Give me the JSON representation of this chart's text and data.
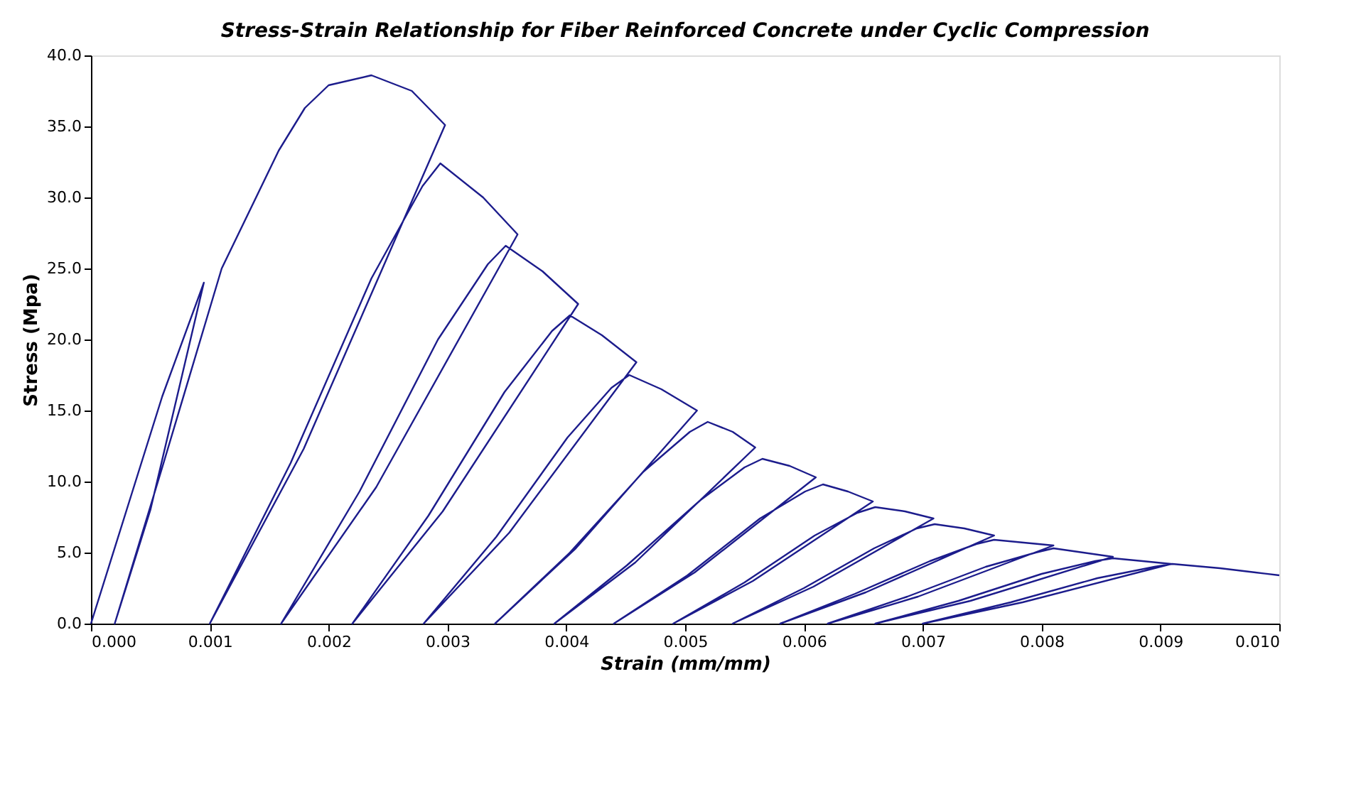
{
  "chart_data": {
    "type": "line",
    "title": "Stress-Strain Relationship for Fiber Reinforced Concrete under Cyclic Compression",
    "xlabel": "Strain (mm/mm)",
    "ylabel": "Stress (Mpa)",
    "series": [
      {
        "color": "#1c1c8c",
        "x": [
          0,
          0.0003,
          0.0006,
          0.00095,
          0.0005,
          0.0002,
          0.0006,
          0.0011,
          0.00158,
          0.0018,
          0.002,
          0.00236,
          0.0027,
          0.00298,
          0.00179,
          0.001,
          0.00168,
          0.00236,
          0.00279,
          0.00294,
          0.0033,
          0.00359,
          0.0024,
          0.0016,
          0.00226,
          0.00292,
          0.00334,
          0.00349,
          0.0038,
          0.0041,
          0.00296,
          0.0022,
          0.00284,
          0.00348,
          0.00388,
          0.00403,
          0.0043,
          0.00459,
          0.00352,
          0.0028,
          0.00341,
          0.00401,
          0.00438,
          0.00453,
          0.0048,
          0.0051,
          0.00408,
          0.0034,
          0.00403,
          0.00465,
          0.00504,
          0.00519,
          0.0054,
          0.00559,
          0.00458,
          0.0039,
          0.00451,
          0.00513,
          0.0055,
          0.00565,
          0.00588,
          0.0061,
          0.00508,
          0.0044,
          0.00502,
          0.00563,
          0.00601,
          0.00616,
          0.00637,
          0.00658,
          0.00557,
          0.0049,
          0.0055,
          0.00609,
          0.00645,
          0.0066,
          0.00685,
          0.00709,
          0.00608,
          0.0054,
          0.006,
          0.00659,
          0.00695,
          0.0071,
          0.00735,
          0.0076,
          0.00652,
          0.0058,
          0.00643,
          0.00706,
          0.00745,
          0.0076,
          0.00785,
          0.0081,
          0.00696,
          0.0062,
          0.00687,
          0.00753,
          0.00795,
          0.0081,
          0.00835,
          0.0086,
          0.0074,
          0.0066,
          0.0073,
          0.008,
          0.00845,
          0.0086,
          0.00885,
          0.00909,
          0.00784,
          0.007,
          0.00774,
          0.00847,
          0.00895,
          0.0091,
          0.0095,
          0.0098,
          0.01
        ],
        "values": [
          0,
          8,
          16,
          24,
          8,
          0,
          11,
          25,
          33.3,
          36.3,
          37.9,
          38.6,
          37.5,
          35.1,
          12.3,
          0,
          11.3,
          24.3,
          30.8,
          32.4,
          30.0,
          27.4,
          9.6,
          0,
          9.3,
          20.0,
          25.3,
          26.6,
          24.8,
          22.5,
          7.9,
          0,
          7.6,
          16.3,
          20.6,
          21.7,
          20.3,
          18.4,
          6.4,
          0,
          6.1,
          13.1,
          16.6,
          17.5,
          16.5,
          15.0,
          5.3,
          0,
          5.0,
          10.7,
          13.5,
          14.2,
          13.5,
          12.4,
          4.3,
          0,
          4.1,
          8.7,
          11.0,
          11.6,
          11.1,
          10.3,
          3.6,
          0,
          3.4,
          7.4,
          9.3,
          9.8,
          9.3,
          8.6,
          3.0,
          0,
          2.9,
          6.2,
          7.8,
          8.2,
          7.9,
          7.4,
          2.6,
          0,
          2.5,
          5.3,
          6.7,
          7.0,
          6.7,
          6.2,
          2.2,
          0,
          2.1,
          4.4,
          5.6,
          5.9,
          5.7,
          5.5,
          1.9,
          0,
          1.9,
          4.0,
          5.0,
          5.3,
          5.0,
          4.7,
          1.6,
          0,
          1.6,
          3.5,
          4.4,
          4.6,
          4.4,
          4.2,
          1.5,
          0,
          1.5,
          3.2,
          4.0,
          4.2,
          3.9,
          3.6,
          3.4
        ]
      }
    ],
    "xlim": [
      0,
      0.01
    ],
    "ylim": [
      0,
      40
    ],
    "xticks": [
      {
        "value": 0,
        "label": "0.000"
      },
      0.001,
      0.002,
      0.003,
      0.004,
      0.005,
      0.006,
      0.007,
      0.008,
      0.009,
      {
        "value": 0.01,
        "label": "0.010"
      }
    ],
    "yticks": [
      {
        "value": 0,
        "label": "0.0"
      },
      {
        "value": 5,
        "label": "5.0"
      },
      {
        "value": 10,
        "label": "10.0"
      },
      {
        "value": 15,
        "label": "15.0"
      },
      {
        "value": 20,
        "label": "20.0"
      },
      {
        "value": 25,
        "label": "25.0"
      },
      {
        "value": 30,
        "label": "30.0"
      },
      {
        "value": 35,
        "label": "35.0"
      },
      {
        "value": 40,
        "label": "40.0"
      }
    ],
    "grid": false,
    "legend": false,
    "marker": "none",
    "line_style": "solid"
  }
}
